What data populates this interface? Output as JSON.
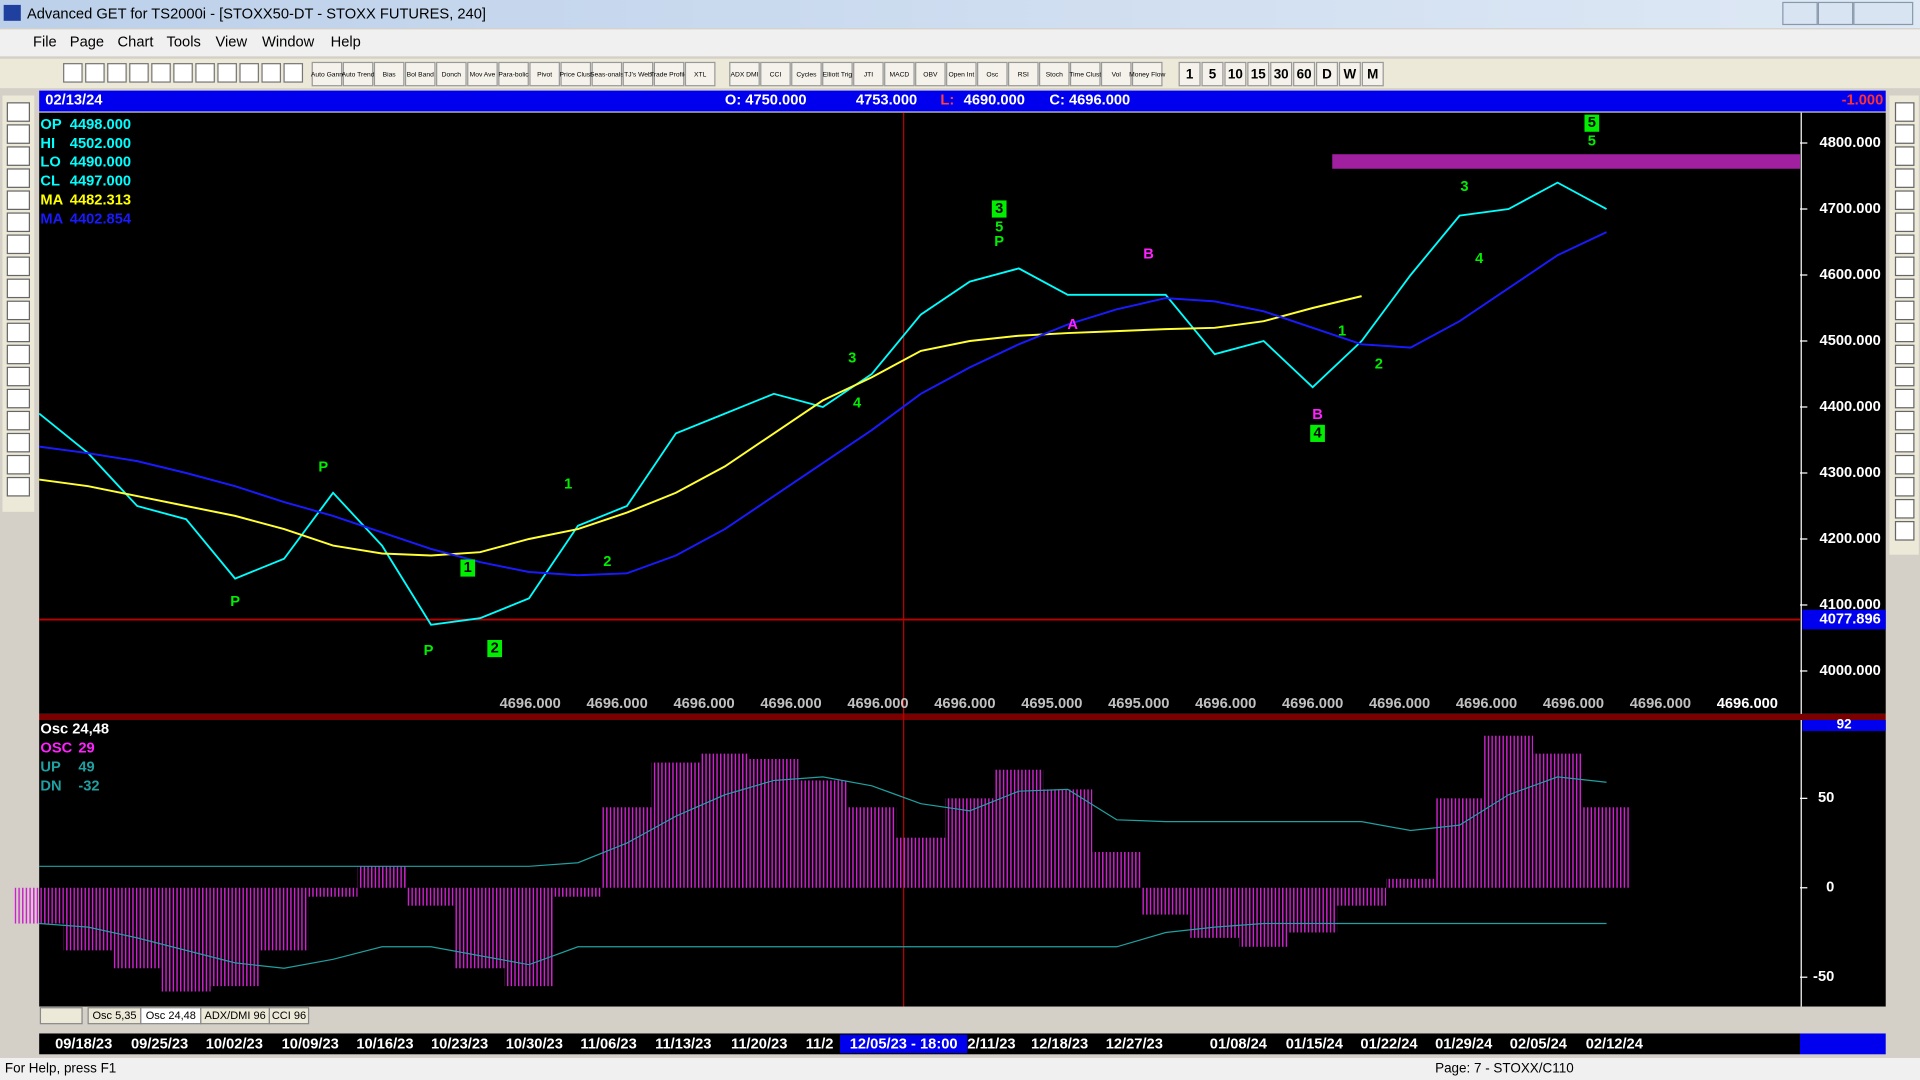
{
  "window": {
    "title": "Advanced GET for TS2000i - [STOXX50-DT - STOXX FUTURES, 240]"
  },
  "menu": [
    "File",
    "Page",
    "Chart",
    "Tools",
    "View",
    "Window",
    "Help"
  ],
  "toolbar": [
    "Auto Gann",
    "Auto Trend",
    "Bias",
    "Bol Band",
    "Donch",
    "Mov Ave",
    "Para-bolic",
    "Pivot",
    "Price Clust",
    "Seas-onals",
    "TJ's Web",
    "Trade Profile",
    "XTL",
    "ADX DMI",
    "CCI",
    "Cycles",
    "Elliott Trig",
    "JTI",
    "MACD",
    "OBV",
    "Open Int",
    "Osc",
    "RSI",
    "Stoch",
    "Time Clust",
    "Vol",
    "Money Flow"
  ],
  "intervals": [
    "1",
    "5",
    "10",
    "15",
    "30",
    "60",
    "D",
    "W",
    "M"
  ],
  "info_bar": {
    "date": "02/13/24",
    "open": "O: 4750.000",
    "high": "4753.000",
    "low_label": "L:",
    "low": "4690.000",
    "close": "C: 4696.000",
    "change": "-1.000"
  },
  "price_panel": {
    "type": "line",
    "legend": [
      {
        "label": "OP",
        "value": "4498.000",
        "color": "#00ffff"
      },
      {
        "label": "HI",
        "value": "4502.000",
        "color": "#00ffff"
      },
      {
        "label": "LO",
        "value": "4490.000",
        "color": "#00ffff"
      },
      {
        "label": "CL",
        "value": "4497.000",
        "color": "#00ffff"
      },
      {
        "label": "MA",
        "value": "4482.313",
        "color": "#ffff00"
      },
      {
        "label": "MA",
        "value": "4402.854",
        "color": "#1a1aff"
      }
    ],
    "ylim": [
      3935,
      4846
    ],
    "yticks": [
      {
        "value": 4000,
        "label": "4000.000"
      },
      {
        "value": 4100,
        "label": "4100.000"
      },
      {
        "value": 4200,
        "label": "4200.000"
      },
      {
        "value": 4300,
        "label": "4300.000"
      },
      {
        "value": 4400,
        "label": "4400.000"
      },
      {
        "value": 4500,
        "label": "4500.000"
      },
      {
        "value": 4600,
        "label": "4600.000"
      },
      {
        "value": 4700,
        "label": "4700.000"
      },
      {
        "value": 4800,
        "label": "4800.000"
      }
    ],
    "series": [
      {
        "color": "#00ffff",
        "values": [
          4390,
          4330,
          4250,
          4230,
          4140,
          4170,
          4270,
          4190,
          4070,
          4080,
          4110,
          4220,
          4250,
          4360,
          4390,
          4420,
          4400,
          4450,
          4540,
          4590,
          4610,
          4570,
          4570,
          4570,
          4480,
          4500,
          4430,
          4500,
          4600,
          4690,
          4700,
          4740,
          4700
        ]
      },
      {
        "color": "#ffff33",
        "values": [
          4290,
          4280,
          4265,
          4250,
          4235,
          4215,
          4190,
          4178,
          4175,
          4180,
          4200,
          4215,
          4240,
          4270,
          4310,
          4360,
          4410,
          4445,
          4485,
          4500,
          4508,
          4512,
          4515,
          4518,
          4520,
          4530,
          4550,
          4568,
          null,
          null,
          null,
          null,
          null
        ]
      },
      {
        "color": "#1a1aff",
        "values": [
          4340,
          4330,
          4318,
          4300,
          4280,
          4256,
          4235,
          4210,
          4185,
          4165,
          4150,
          4145,
          4148,
          4175,
          4215,
          4265,
          4315,
          4365,
          4420,
          4460,
          4495,
          4525,
          4548,
          4565,
          4560,
          4545,
          4520,
          4495,
          4490,
          4530,
          4580,
          4630,
          4665
        ]
      }
    ],
    "cursor_price": {
      "value": 4077.896,
      "label": "4077.896"
    },
    "cursor_x": 17.65,
    "zone": {
      "ylim": [
        4761,
        4783
      ],
      "from": 26.4,
      "color": "#a020a0"
    },
    "wave_labels": [
      {
        "label": "P",
        "x": 5.8,
        "y": 4308,
        "color": "#00ee00",
        "boxed": false
      },
      {
        "label": "P",
        "x": 4.0,
        "y": 4104,
        "color": "#00ee00",
        "boxed": false
      },
      {
        "label": "1",
        "x": 8.75,
        "y": 4156,
        "color": "#00ee00",
        "boxed": true
      },
      {
        "label": "P",
        "x": 7.95,
        "y": 4030,
        "color": "#00ee00",
        "boxed": false
      },
      {
        "label": "2",
        "x": 9.3,
        "y": 4034,
        "color": "#00ee00",
        "boxed": true
      },
      {
        "label": "1",
        "x": 10.8,
        "y": 4282,
        "color": "#00ee00",
        "boxed": false
      },
      {
        "label": "2",
        "x": 11.6,
        "y": 4165,
        "color": "#00ee00",
        "boxed": false
      },
      {
        "label": "3",
        "x": 16.6,
        "y": 4473,
        "color": "#00ee00",
        "boxed": false
      },
      {
        "label": "4",
        "x": 16.7,
        "y": 4405,
        "color": "#00ee00",
        "boxed": false
      },
      {
        "label": "3",
        "x": 19.6,
        "y": 4700,
        "color": "#00ee00",
        "boxed": true
      },
      {
        "label": "5",
        "x": 19.6,
        "y": 4672,
        "color": "#00ee00",
        "boxed": false
      },
      {
        "label": "P",
        "x": 19.6,
        "y": 4650,
        "color": "#00ee00",
        "boxed": false
      },
      {
        "label": "B",
        "x": 22.65,
        "y": 4631,
        "color": "#ff22ff",
        "boxed": false
      },
      {
        "label": "A",
        "x": 21.1,
        "y": 4524,
        "color": "#ff22ff",
        "boxed": false
      },
      {
        "label": "B",
        "x": 26.1,
        "y": 4388,
        "color": "#ff22ff",
        "boxed": false
      },
      {
        "label": "4",
        "x": 26.1,
        "y": 4360,
        "color": "#00ee00",
        "boxed": true
      },
      {
        "label": "1",
        "x": 26.6,
        "y": 4514,
        "color": "#00ee00",
        "boxed": false
      },
      {
        "label": "2",
        "x": 27.35,
        "y": 4464,
        "color": "#00ee00",
        "boxed": false
      },
      {
        "label": "3",
        "x": 29.1,
        "y": 4733,
        "color": "#00ee00",
        "boxed": false
      },
      {
        "label": "4",
        "x": 29.4,
        "y": 4624,
        "color": "#00ee00",
        "boxed": false
      },
      {
        "label": "5",
        "x": 31.7,
        "y": 4830,
        "color": "#00ee00",
        "boxed": true
      },
      {
        "label": "5",
        "x": 31.7,
        "y": 4802,
        "color": "#00ee00",
        "boxed": false
      }
    ],
    "readout": [
      "4696.000",
      "4696.000",
      "4696.000",
      "4696.000",
      "4696.000",
      "4696.000",
      "4695.000",
      "4695.000",
      "4696.000",
      "4696.000",
      "4696.000",
      "4696.000",
      "4696.000",
      "4696.000",
      "4696.000"
    ]
  },
  "osc_panel": {
    "type": "bar",
    "legend": [
      {
        "label": "Osc 24,48",
        "value": "",
        "color": "#ffffff"
      },
      {
        "label": "OSC",
        "value": "29",
        "color": "#ff22ff"
      },
      {
        "label": "UP",
        "value": "49",
        "color": "#20a0a0"
      },
      {
        "label": "DN",
        "value": "-32",
        "color": "#20a0a0"
      }
    ],
    "value_box": "92",
    "ylim": [
      -66.4,
      93.8
    ],
    "yticks": [
      -50,
      0,
      50
    ],
    "color": "#cc22cc",
    "values": [
      -20,
      -35,
      -45,
      -58,
      -55,
      -35,
      -5,
      12,
      -10,
      -45,
      -55,
      -5,
      45,
      70,
      75,
      72,
      60,
      45,
      28,
      50,
      66,
      55,
      20,
      -15,
      -28,
      -33,
      -25,
      -10,
      5,
      50,
      85,
      75,
      45
    ],
    "lines": [
      {
        "color": "#20a0a0",
        "values": [
          12,
          12,
          12,
          12,
          12,
          12,
          12,
          12,
          12,
          12,
          12,
          14,
          25,
          40,
          52,
          60,
          62,
          57,
          47,
          43,
          54,
          55,
          38,
          37,
          37,
          37,
          37,
          37,
          32,
          35,
          52,
          62,
          59
        ]
      },
      {
        "color": "#20a0a0",
        "values": [
          -20,
          -22,
          -28,
          -35,
          -42,
          -45,
          -40,
          -33,
          -33,
          -38,
          -43,
          -33,
          -33,
          -33,
          -33,
          -33,
          -33,
          -33,
          -33,
          -33,
          -33,
          -33,
          -33,
          -25,
          -22,
          -20,
          -20,
          -20,
          -20,
          -20,
          -20,
          -20,
          -20
        ]
      }
    ]
  },
  "tabs": [
    "Osc 5,35",
    "Osc 24,48",
    "ADX/DMI 96",
    "CCI 96"
  ],
  "dates": [
    "09/18/23",
    "09/25/23",
    "10/02/23",
    "10/09/23",
    "10/16/23",
    "10/23/23",
    "10/30/23",
    "11/06/23",
    "11/13/23",
    "11/20/23",
    "11/2",
    "2/11/23",
    "12/18/23",
    "12/27/23",
    "01/08/24",
    "01/15/24",
    "01/22/24",
    "01/29/24",
    "02/05/24",
    "02/12/24"
  ],
  "cursor_date": "12/05/23 - 18:00",
  "status": {
    "left": "For Help, press F1",
    "right": "Page: 7 - STOXX/C110"
  }
}
